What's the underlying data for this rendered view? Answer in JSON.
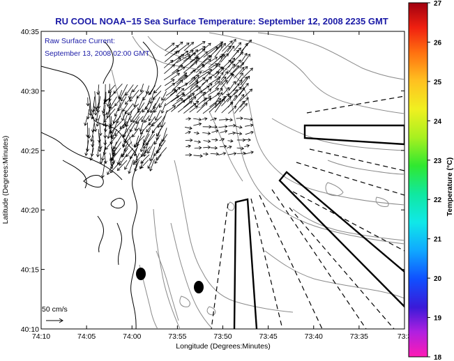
{
  "title": "RU COOL  NOAA−15  Sea Surface Temperature:  September 12, 2008 2235 GMT",
  "subtitle_line1": "Raw Surface Current:",
  "subtitle_line2": "September 13, 2008 02:00 GMT",
  "scale_label": "50 cm/s",
  "x_axis": {
    "label": "Longitude (Degrees:Minutes)",
    "ticks": [
      "74:10",
      "74:05",
      "74:00",
      "73:55",
      "73:50",
      "73:45",
      "73:40",
      "73:35",
      "73:3"
    ]
  },
  "y_axis": {
    "label": "Latitude (Degrees:Minutes)",
    "ticks": [
      "40:35",
      "40:30",
      "40:25",
      "40:20",
      "40:15",
      "40:10"
    ]
  },
  "colorbar": {
    "label": "Temperature (°C)",
    "ticks": [
      "27",
      "26",
      "25",
      "24",
      "23",
      "22",
      "21",
      "20",
      "19",
      "18"
    ],
    "min": 18,
    "max": 27
  },
  "colors": {
    "title": "#1a1aa6",
    "land": "#ffffff",
    "contour": "#888888",
    "coast": "#000000"
  }
}
